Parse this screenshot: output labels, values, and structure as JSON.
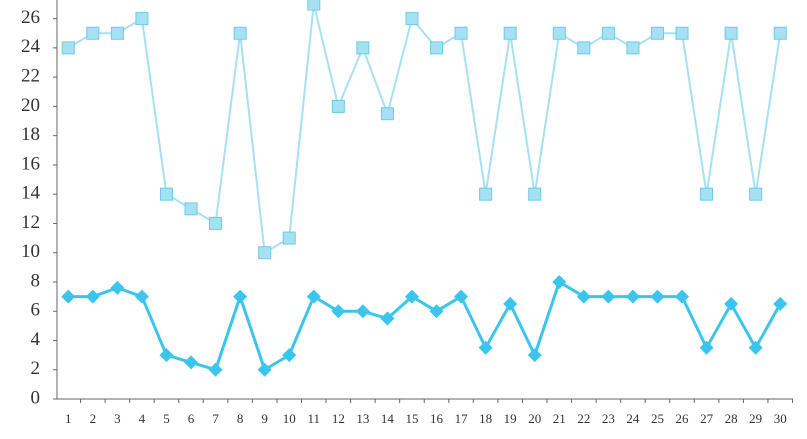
{
  "chart_data": {
    "type": "line",
    "categories": [
      "1",
      "2",
      "3",
      "4",
      "5",
      "6",
      "7",
      "8",
      "9",
      "10",
      "11",
      "12",
      "13",
      "14",
      "15",
      "16",
      "17",
      "18",
      "19",
      "20",
      "21",
      "22",
      "23",
      "24",
      "25",
      "26",
      "27",
      "28",
      "29",
      "30"
    ],
    "series": [
      {
        "color": "#a6e1f3",
        "marker": "square",
        "values": [
          24,
          25,
          25,
          26,
          14,
          13,
          12,
          25,
          10,
          11,
          27,
          20,
          24,
          19.5,
          26,
          24,
          25,
          14,
          25,
          14,
          25,
          24,
          25,
          24,
          25,
          25,
          14,
          25,
          14,
          25
        ]
      },
      {
        "color": "#3cc5ec",
        "marker": "diamond",
        "values": [
          7,
          7,
          7.6,
          7,
          3,
          2.5,
          2,
          7,
          2,
          3,
          7,
          6,
          6,
          5.5,
          7,
          6,
          7,
          3.5,
          6.5,
          3,
          8,
          7,
          7,
          7,
          7,
          7,
          3.5,
          6.5,
          3.5,
          6.5
        ]
      }
    ],
    "ylim": [
      0,
      27
    ],
    "yticks": [
      0,
      2,
      4,
      6,
      8,
      10,
      12,
      14,
      16,
      18,
      20,
      22,
      24,
      26
    ],
    "grid": false
  }
}
